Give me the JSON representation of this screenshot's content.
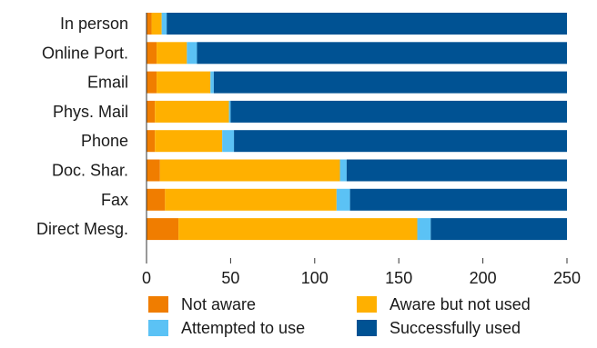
{
  "chart_data": {
    "type": "bar",
    "orientation": "horizontal",
    "stacked": true,
    "categories": [
      "In person",
      "Online Port.",
      "Email",
      "Phys. Mail",
      "Phone",
      "Doc. Shar.",
      "Fax",
      "Direct Mesg."
    ],
    "series": [
      {
        "name": "Not aware",
        "color": "#f07d00",
        "values": [
          3,
          6,
          6,
          5,
          5,
          8,
          11,
          19
        ]
      },
      {
        "name": "Aware but not used",
        "color": "#ffb000",
        "values": [
          6,
          18,
          32,
          44,
          40,
          107,
          102,
          142
        ]
      },
      {
        "name": "Attempted to use",
        "color": "#5bc2f5",
        "values": [
          3,
          6,
          2,
          1,
          7,
          4,
          8,
          8
        ]
      },
      {
        "name": "Successfully used",
        "color": "#005293",
        "values": [
          238,
          220,
          210,
          200,
          198,
          131,
          129,
          81
        ]
      }
    ],
    "x_ticks": [
      "0",
      "50",
      "100",
      "150",
      "200",
      "250"
    ],
    "xlim": [
      0,
      250
    ],
    "grid": false,
    "legend_position": "bottom"
  }
}
